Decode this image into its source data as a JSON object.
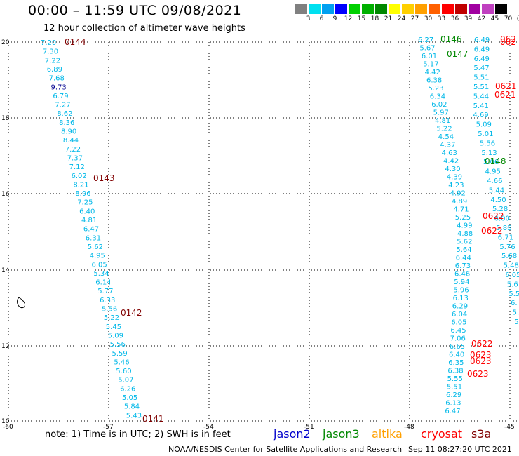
{
  "header": {
    "title": "00:00 – 11:59 UTC 09/08/2021",
    "subtitle": "12 hour collection of altimeter wave heights"
  },
  "legend": {
    "labels": [
      "3",
      "6",
      "9",
      "12",
      "15",
      "18",
      "21",
      "24",
      "27",
      "30",
      "33",
      "36",
      "39",
      "42",
      "45",
      "70",
      "(ft)"
    ],
    "colors": [
      "#808080",
      "#00e0f0",
      "#00a0f0",
      "#0000ff",
      "#00d000",
      "#00b000",
      "#008800",
      "#ffff00",
      "#ffd000",
      "#ffa000",
      "#ff6000",
      "#ff0000",
      "#c00000",
      "#a000a0",
      "#c040c0",
      "#000000"
    ]
  },
  "axes": {
    "x_ticks": [
      "-60",
      "-57",
      "-54",
      "-51",
      "-48",
      "-45"
    ],
    "y_ticks": [
      "20",
      "18",
      "16",
      "14",
      "12",
      "10"
    ]
  },
  "colors": {
    "cyan": "#00b8e8",
    "dark_blue": "#000090",
    "dark_red": "#800000",
    "red": "#ff0000",
    "green": "#008800",
    "grid": "#000000"
  },
  "track_left": {
    "values": [
      "7.20",
      "7.30",
      "7.22",
      "6.89",
      "7.68",
      "9.73",
      "6.79",
      "7.27",
      "8.62",
      "8.36",
      "8.90",
      "8.44",
      "7.22",
      "7.37",
      "7.12",
      "6.02",
      "8.21",
      "8.96",
      "7.25",
      "6.40",
      "4.81",
      "6.47",
      "6.31",
      "5.62",
      "4.95",
      "6.05",
      "5.34",
      "6.14",
      "5.77",
      "6.33",
      "5.56",
      "5.22",
      "5.45",
      "5.09",
      "5.56",
      "5.59",
      "5.46",
      "5.60",
      "5.07",
      "6.26",
      "5.05",
      "5.84",
      "5.43"
    ],
    "times": [
      "0144",
      "0143",
      "0142",
      "0141"
    ]
  },
  "track_right_a": {
    "values": [
      "6.27",
      "5.67",
      "6.01",
      "5.17",
      "4.42",
      "6.38",
      "5.23",
      "6.34",
      "6.02",
      "5.97",
      "4.81",
      "5.22",
      "4.54",
      "4.37",
      "4.63",
      "4.42",
      "4.30",
      "4.39",
      "4.23",
      "4.92",
      "4.89",
      "4.71",
      "5.25",
      "4.99",
      "4.88",
      "5.62",
      "5.64",
      "6.44",
      "6.73",
      "6.46",
      "5.94",
      "5.96",
      "6.13",
      "6.29",
      "6.04",
      "6.05",
      "6.45",
      "7.06",
      "6.65",
      "6.40",
      "6.35",
      "6.38",
      "5.55",
      "5.51",
      "6.29",
      "6.13",
      "6.47"
    ]
  },
  "track_right_b": {
    "values": [
      "6.49",
      "6.49",
      "6.49",
      "5.47",
      "5.51",
      "5.51",
      "5.44",
      "5.41",
      "4.69",
      "5.09",
      "5.01",
      "5.56",
      "5.13",
      "5.06",
      "4.95",
      "4.66",
      "5.44",
      "4.50",
      "5.28",
      "6.00",
      "5.86",
      "6.71",
      "5.76",
      "5.68",
      "5.48",
      "6.05",
      "5.6",
      "5.5",
      "6.",
      "5.9",
      "5.5"
    ]
  },
  "time_labels": {
    "jason3": [
      "0146",
      "0147",
      "0148"
    ],
    "cryosat": [
      "0621",
      "0621",
      "0622",
      "0622",
      "0622",
      "0623",
      "0623",
      "0623",
      "062",
      "062"
    ]
  },
  "footer": {
    "note": "note:  1) Time is in UTC;  2) SWH is in feet",
    "satellites": [
      {
        "name": "jason2",
        "color": "#0000cc"
      },
      {
        "name": "jason3",
        "color": "#008800"
      },
      {
        "name": "altika",
        "color": "#ffa000"
      },
      {
        "name": "cryosat",
        "color": "#ff0000"
      },
      {
        "name": "s3a",
        "color": "#800000"
      }
    ],
    "credit": "NOAA/NESDIS Center for Satellite Applications and Research",
    "timestamp": "Sep 11 08:27:20 UTC 2021"
  }
}
